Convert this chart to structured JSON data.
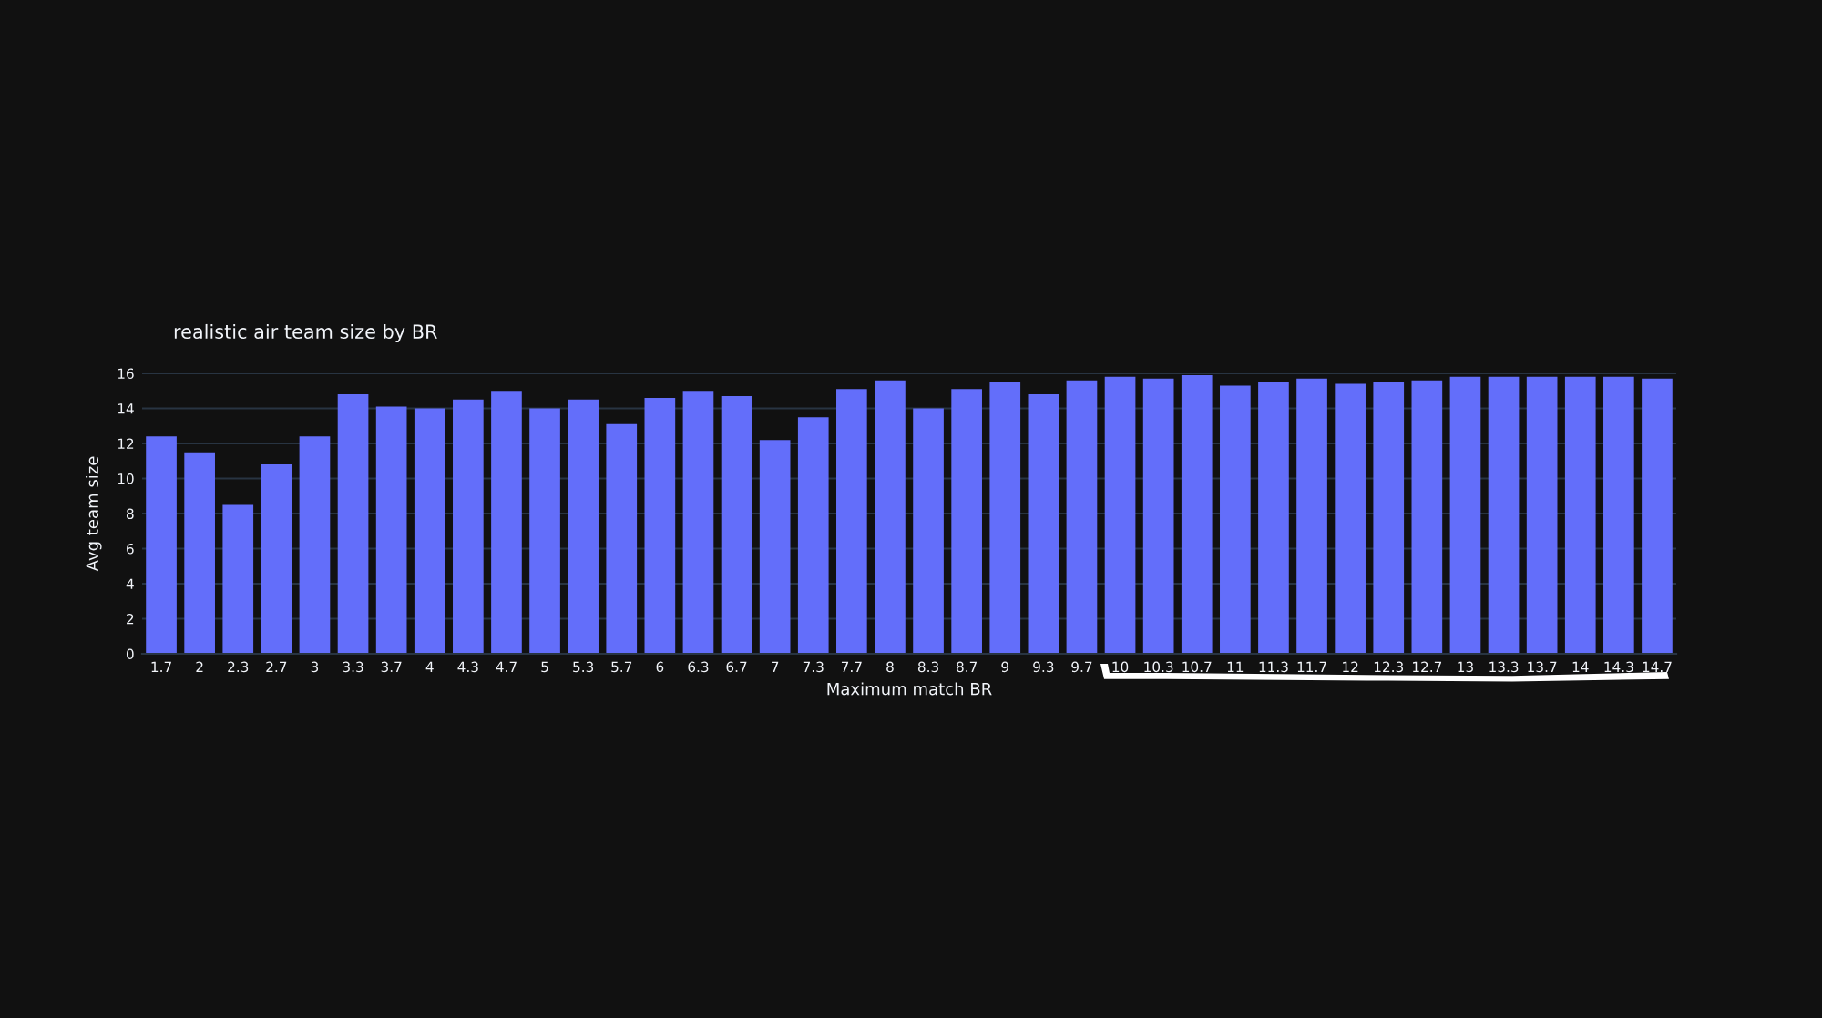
{
  "chart_data": {
    "type": "bar",
    "title": "realistic air team size by BR",
    "xlabel": "Maximum match BR",
    "ylabel": "Avg team size",
    "categories": [
      "1.7",
      "2",
      "2.3",
      "2.7",
      "3",
      "3.3",
      "3.7",
      "4",
      "4.3",
      "4.7",
      "5",
      "5.3",
      "5.7",
      "6",
      "6.3",
      "6.7",
      "7",
      "7.3",
      "7.7",
      "8",
      "8.3",
      "8.7",
      "9",
      "9.3",
      "9.7",
      "10",
      "10.3",
      "10.7",
      "11",
      "11.3",
      "11.7",
      "12",
      "12.3",
      "12.7",
      "13",
      "13.3",
      "13.7",
      "14",
      "14.3",
      "14.7"
    ],
    "values": [
      12.4,
      11.5,
      8.5,
      10.8,
      12.4,
      14.8,
      14.1,
      14.0,
      14.5,
      15.0,
      14.0,
      14.5,
      13.1,
      14.6,
      15.0,
      14.7,
      12.2,
      13.5,
      15.1,
      15.6,
      14.0,
      15.1,
      15.5,
      14.8,
      15.6,
      15.8,
      15.7,
      15.9,
      15.3,
      15.5,
      15.7,
      15.4,
      15.5,
      15.6,
      15.8,
      15.8,
      15.8,
      15.8,
      15.8,
      15.7
    ],
    "color": "#636efa",
    "ylim": [
      0,
      16
    ],
    "yticks": [
      0,
      2,
      4,
      6,
      8,
      10,
      12,
      14,
      16
    ],
    "grid": "y"
  }
}
